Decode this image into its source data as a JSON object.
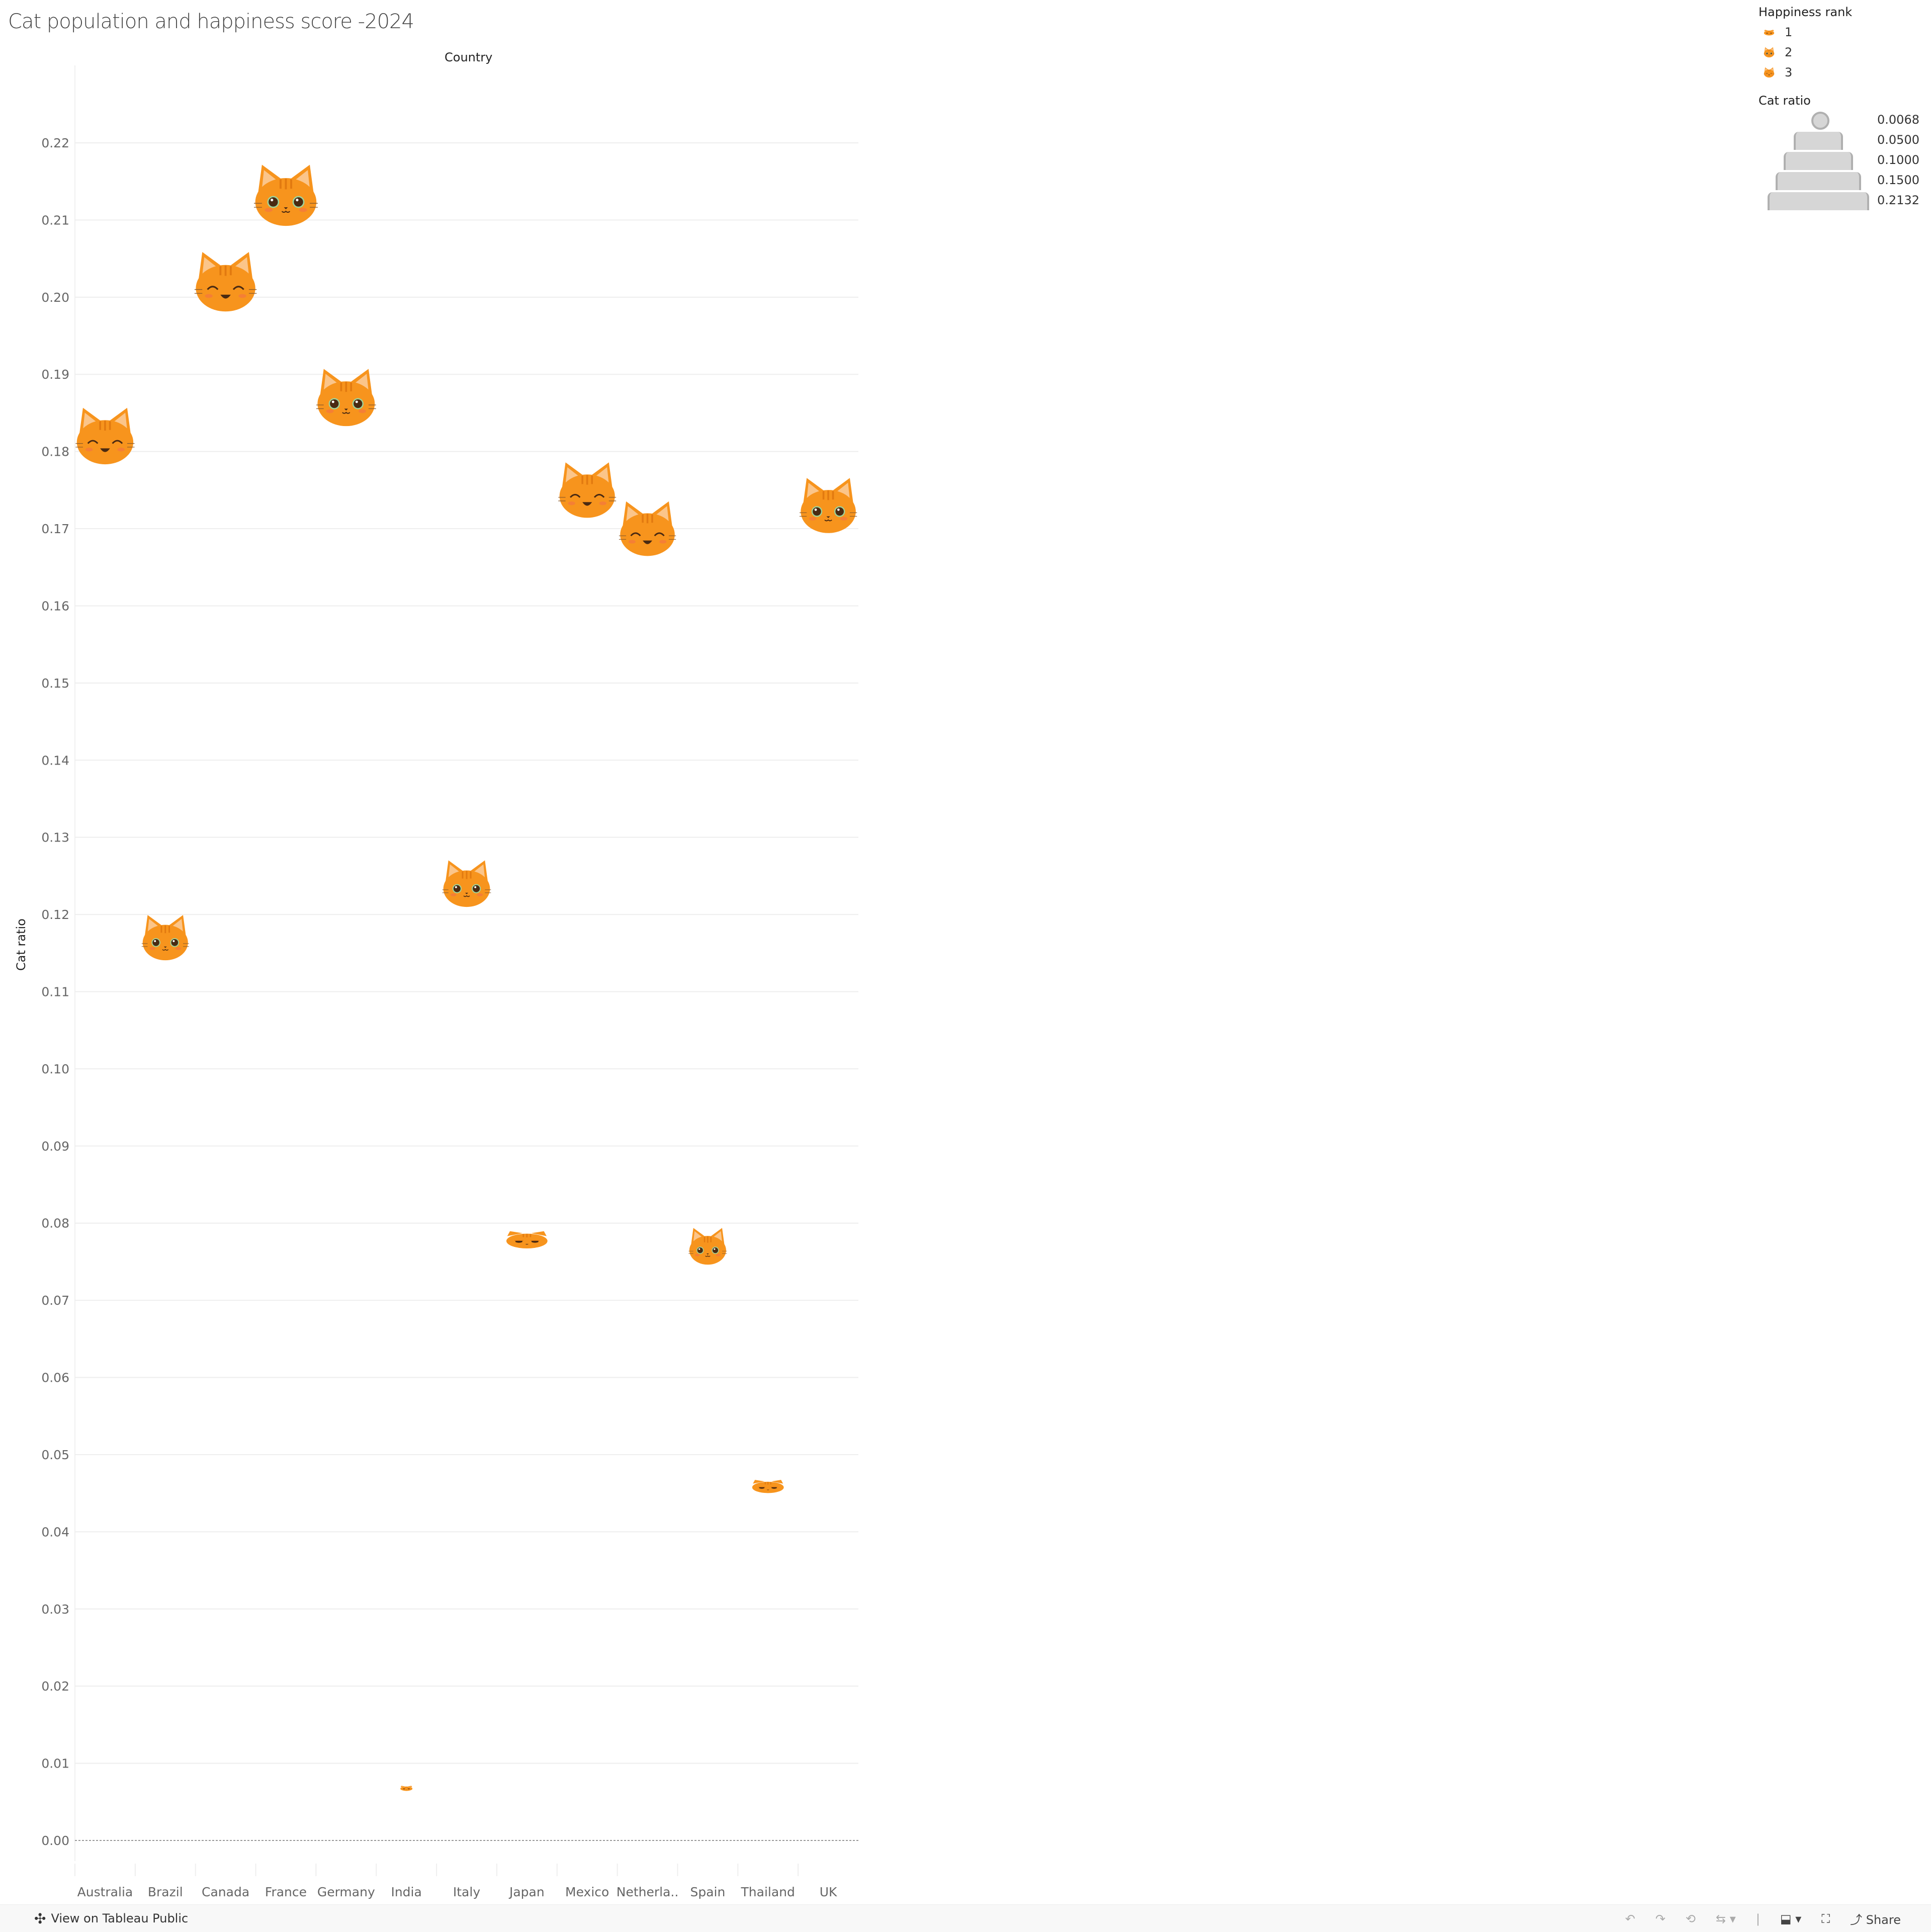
{
  "title": "Cat population and happiness score -2024",
  "column_header": "Country",
  "chart_data": {
    "type": "scatter",
    "title": "Cat population and happiness score -2024",
    "xlabel": "Country",
    "ylabel": "Cat ratio",
    "ylim": [
      0,
      0.22
    ],
    "grid": true,
    "y_ticks": [
      "0.00",
      "0.01",
      "0.02",
      "0.03",
      "0.04",
      "0.05",
      "0.06",
      "0.07",
      "0.08",
      "0.09",
      "0.10",
      "0.11",
      "0.12",
      "0.13",
      "0.14",
      "0.15",
      "0.16",
      "0.17",
      "0.18",
      "0.19",
      "0.20",
      "0.21",
      "0.22"
    ],
    "categories": [
      "Australia",
      "Brazil",
      "Canada",
      "France",
      "Germany",
      "India",
      "Italy",
      "Japan",
      "Mexico",
      "Netherla..",
      "Spain",
      "Thailand",
      "UK"
    ],
    "values": [
      0.182,
      0.117,
      0.202,
      0.2132,
      0.187,
      0.0068,
      0.124,
      0.078,
      0.175,
      0.17,
      0.077,
      0.046,
      0.173
    ],
    "happiness_rank": [
      3,
      2,
      3,
      2,
      2,
      1,
      2,
      1,
      3,
      3,
      2,
      1,
      2
    ],
    "mark": "cat-face-icon",
    "mark_color": "#F7941D",
    "legend_placement": "right"
  },
  "legend": {
    "rank_title": "Happiness rank",
    "ranks": [
      "1",
      "2",
      "3"
    ],
    "size_title": "Cat ratio",
    "sizes": [
      "0.0068",
      "0.0500",
      "0.1000",
      "0.1500",
      "0.2132"
    ]
  },
  "footer": {
    "view_link": "View on Tableau Public",
    "share": "Share"
  }
}
